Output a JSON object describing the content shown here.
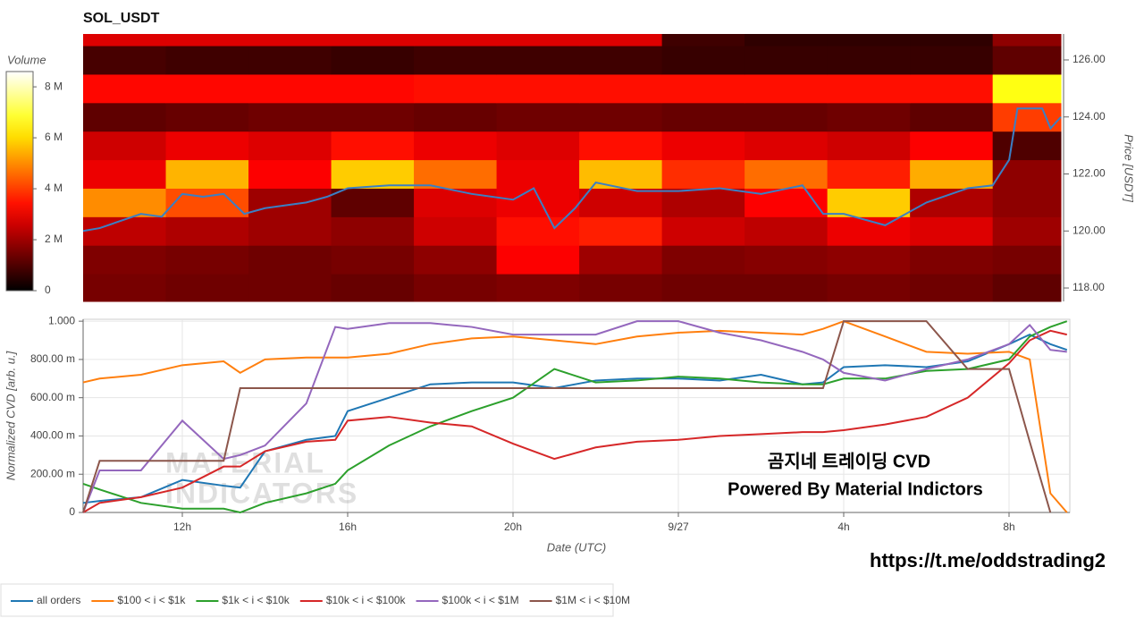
{
  "chart_data": [
    {
      "type": "heatmap",
      "title": "SOL_USDT",
      "y_label": "Price [USDT]",
      "xlim": [
        9.6,
        33.25
      ],
      "ylim": [
        117.53,
        126.91
      ],
      "yticks": [
        {
          "value": 118,
          "label": "118.00"
        },
        {
          "value": 120,
          "label": "120.00"
        },
        {
          "value": 122,
          "label": "122.00"
        },
        {
          "value": 124,
          "label": "124.00"
        },
        {
          "value": 126,
          "label": "126.00"
        }
      ],
      "colorbar": {
        "label": "Volume",
        "clim": [
          0,
          8600000
        ],
        "ticks": [
          0,
          {
            "value": 2000000,
            "label": "2 M"
          },
          {
            "value": 4000000,
            "label": "4 M"
          },
          {
            "value": 6000000,
            "label": "6 M"
          },
          {
            "value": 8000000,
            "label": "8 M"
          }
        ]
      },
      "x_bins": [
        9.6,
        11.6,
        13.6,
        15.6,
        17.6,
        19.6,
        21.6,
        23.6,
        25.6,
        27.6,
        29.6,
        31.6,
        33.25
      ],
      "y_bins": [
        117.53,
        118.5,
        119.5,
        120.5,
        121.5,
        122.5,
        123.5,
        124.5,
        125.5,
        126.5,
        126.91
      ],
      "z": [
        [
          1500000,
          1400000,
          1400000,
          1300000,
          1500000,
          1600000,
          1500000,
          1400000,
          1400000,
          1500000,
          1400000,
          1200000
        ],
        [
          1600000,
          1500000,
          1400000,
          1500000,
          1800000,
          3200000,
          2000000,
          1600000,
          1700000,
          1800000,
          1600000,
          1500000
        ],
        [
          2400000,
          2200000,
          2000000,
          1800000,
          2600000,
          3400000,
          3600000,
          2600000,
          2400000,
          3000000,
          2800000,
          2000000
        ],
        [
          5000000,
          4200000,
          2000000,
          1200000,
          2800000,
          3000000,
          2600000,
          2200000,
          3200000,
          5800000,
          2200000,
          1800000
        ],
        [
          3000000,
          5500000,
          3200000,
          5800000,
          4600000,
          3000000,
          5600000,
          3800000,
          4600000,
          3600000,
          5400000,
          1800000
        ],
        [
          2600000,
          3000000,
          2800000,
          3400000,
          3000000,
          2800000,
          3400000,
          3000000,
          2800000,
          2600000,
          3200000,
          1000000
        ],
        [
          1200000,
          1300000,
          1400000,
          1400000,
          1300000,
          1400000,
          1400000,
          1300000,
          1300000,
          1400000,
          1200000,
          4000000
        ],
        [
          3300000,
          3300000,
          3300000,
          3300000,
          3400000,
          3400000,
          3400000,
          3400000,
          3400000,
          3400000,
          3400000,
          6600000
        ],
        [
          900000,
          800000,
          800000,
          700000,
          800000,
          800000,
          800000,
          700000,
          700000,
          700000,
          700000,
          1200000
        ],
        [
          2800000,
          2800000,
          2800000,
          2800000,
          2800000,
          2800000,
          2800000,
          800000,
          600000,
          600000,
          600000,
          1800000
        ]
      ],
      "price_line": {
        "color": "#3b7fc4",
        "x": [
          9.6,
          10,
          11,
          11.5,
          12,
          12.5,
          13,
          13.5,
          14,
          15,
          15.5,
          16,
          17,
          18,
          19,
          20,
          20.5,
          21,
          21.5,
          22,
          23,
          24,
          25,
          26,
          27,
          27.5,
          28,
          29,
          30,
          31,
          31.6,
          32,
          32.2,
          32.8,
          33,
          33.25
        ],
        "values": [
          120.0,
          120.1,
          120.6,
          120.5,
          121.3,
          121.2,
          121.3,
          120.6,
          120.8,
          121.0,
          121.2,
          121.5,
          121.6,
          121.6,
          121.3,
          121.1,
          121.5,
          120.1,
          120.8,
          121.7,
          121.4,
          121.4,
          121.5,
          121.3,
          121.6,
          120.6,
          120.6,
          120.2,
          121.0,
          121.5,
          121.6,
          122.5,
          124.3,
          124.3,
          123.6,
          124.0
        ]
      }
    },
    {
      "type": "line",
      "x_label": "Date (UTC)",
      "y_label": "Normalized CVD [arb. u.]",
      "xlim": [
        9.6,
        33.47
      ],
      "ylim": [
        0,
        1.01
      ],
      "grid": true,
      "xticks": [
        {
          "value": 12,
          "label": "12h"
        },
        {
          "value": 16,
          "label": "16h"
        },
        {
          "value": 20,
          "label": "20h"
        },
        {
          "value": 24,
          "label": "9/27"
        },
        {
          "value": 28,
          "label": "4h"
        },
        {
          "value": 32,
          "label": "8h"
        }
      ],
      "yticks": [
        0,
        {
          "value": 0.2,
          "label": "200.00 m"
        },
        {
          "value": 0.4,
          "label": "400.00 m"
        },
        {
          "value": 0.6,
          "label": "600.00 m"
        },
        {
          "value": 0.8,
          "label": "800.00 m"
        },
        {
          "value": 1,
          "label": "1.000"
        }
      ],
      "x": [
        9.6,
        10,
        11,
        12,
        13,
        13.4,
        14,
        15,
        15.7,
        16,
        17,
        18,
        19,
        20,
        21,
        22,
        23,
        24,
        25,
        26,
        27,
        27.5,
        28,
        29,
        30,
        31,
        32,
        32.5,
        33,
        33.4
      ],
      "series": [
        {
          "name": "all orders",
          "color": "#1f77b4",
          "values": [
            0.05,
            0.06,
            0.08,
            0.17,
            0.14,
            0.13,
            0.32,
            0.38,
            0.4,
            0.53,
            0.6,
            0.67,
            0.68,
            0.68,
            0.65,
            0.69,
            0.7,
            0.7,
            0.69,
            0.72,
            0.67,
            0.68,
            0.76,
            0.77,
            0.76,
            0.79,
            0.88,
            0.93,
            0.88,
            0.85
          ]
        },
        {
          "name": "$100 < i < $1k",
          "color": "#ff7f0e",
          "values": [
            0.68,
            0.7,
            0.72,
            0.77,
            0.79,
            0.73,
            0.8,
            0.81,
            0.81,
            0.81,
            0.83,
            0.88,
            0.91,
            0.92,
            0.9,
            0.88,
            0.92,
            0.94,
            0.95,
            0.94,
            0.93,
            0.96,
            1.0,
            0.92,
            0.84,
            0.83,
            0.84,
            0.8,
            0.1,
            0.0
          ]
        },
        {
          "name": "$1k < i < $10k",
          "color": "#2ca02c",
          "values": [
            0.15,
            0.12,
            0.05,
            0.02,
            0.02,
            0.0,
            0.05,
            0.1,
            0.15,
            0.22,
            0.35,
            0.45,
            0.53,
            0.6,
            0.75,
            0.68,
            0.69,
            0.71,
            0.7,
            0.68,
            0.67,
            0.67,
            0.7,
            0.7,
            0.74,
            0.75,
            0.8,
            0.92,
            0.97,
            1.0
          ]
        },
        {
          "name": "$10k < i < $100k",
          "color": "#d62728",
          "values": [
            0.0,
            0.05,
            0.08,
            0.13,
            0.24,
            0.24,
            0.32,
            0.37,
            0.38,
            0.48,
            0.5,
            0.47,
            0.45,
            0.36,
            0.28,
            0.34,
            0.37,
            0.38,
            0.4,
            0.41,
            0.42,
            0.42,
            0.43,
            0.46,
            0.5,
            0.6,
            0.78,
            0.9,
            0.95,
            0.93
          ]
        },
        {
          "name": "$100k < i < $1M",
          "color": "#9467bd",
          "values": [
            0.0,
            0.22,
            0.22,
            0.48,
            0.28,
            0.3,
            0.35,
            0.57,
            0.97,
            0.96,
            0.99,
            0.99,
            0.97,
            0.93,
            0.93,
            0.93,
            1.0,
            1.0,
            0.94,
            0.9,
            0.84,
            0.8,
            0.73,
            0.69,
            0.75,
            0.8,
            0.88,
            0.98,
            0.85,
            0.84
          ]
        },
        {
          "name": "$1M < i < $10M",
          "color": "#8c564b",
          "values": [
            0.0,
            0.27,
            0.27,
            0.27,
            0.27,
            0.65,
            0.65,
            0.65,
            0.65,
            0.65,
            0.65,
            0.65,
            0.65,
            0.65,
            0.65,
            0.65,
            0.65,
            0.65,
            0.65,
            0.65,
            0.65,
            0.65,
            1.0,
            1.0,
            1.0,
            0.75,
            0.75,
            0.37,
            0.0,
            null
          ]
        }
      ]
    }
  ],
  "watermark": [
    "MATERIAL",
    "INDICATORS"
  ],
  "annotations": [
    "곰지네 트레이딩 CVD",
    "Powered By Material Indictors",
    "https://t.me/oddstrading2"
  ]
}
